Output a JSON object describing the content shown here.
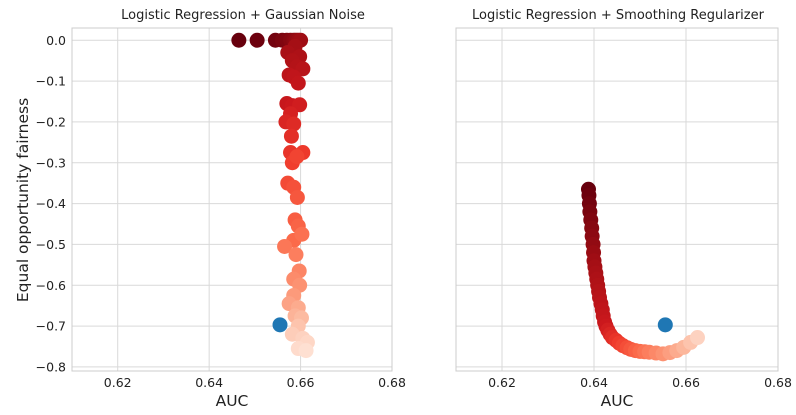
{
  "chart_data": [
    {
      "type": "scatter",
      "title": "Logistic Regression + Gaussian Noise",
      "xlabel": "AUC",
      "ylabel": "Equal opportunity fairness",
      "xlim": [
        0.61,
        0.68
      ],
      "ylim": [
        -0.81,
        0.03
      ],
      "xticks": [
        "0.62",
        "0.64",
        "0.66",
        "0.68"
      ],
      "yticks": [
        "0.0",
        "-0.1",
        "-0.2",
        "-0.3",
        "-0.4",
        "-0.5",
        "-0.6",
        "-0.7",
        "-0.8"
      ],
      "grid": true,
      "colormap": "Reds (dark = low noise, light = high noise)",
      "series": [
        {
          "color": "#a50f15",
          "points": [
            [
              0.6465,
              0.0,
              0.0
            ],
            [
              0.6505,
              0.0,
              0.02
            ],
            [
              0.6545,
              0.0,
              0.04
            ],
            [
              0.656,
              0.0,
              0.06
            ],
            [
              0.657,
              0.0,
              0.08
            ],
            [
              0.6578,
              0.0,
              0.1
            ],
            [
              0.6585,
              0.0,
              0.12
            ],
            [
              0.659,
              0.0,
              0.14
            ],
            [
              0.6595,
              0.0,
              0.16
            ],
            [
              0.66,
              0.0,
              0.18
            ],
            [
              0.6588,
              -0.015,
              0.2
            ],
            [
              0.6572,
              -0.03,
              0.22
            ],
            [
              0.6598,
              -0.04,
              0.24
            ],
            [
              0.6582,
              -0.05,
              0.26
            ],
            [
              0.6592,
              -0.065,
              0.28
            ],
            [
              0.6605,
              -0.07,
              0.3
            ],
            [
              0.6575,
              -0.085,
              0.32
            ],
            [
              0.6585,
              -0.09,
              0.34
            ],
            [
              0.6595,
              -0.105,
              0.36
            ],
            [
              0.657,
              -0.155,
              0.38
            ],
            [
              0.6582,
              -0.16,
              0.4
            ],
            [
              0.6598,
              -0.158,
              0.42
            ],
            [
              0.6578,
              -0.18,
              0.44
            ],
            [
              0.6568,
              -0.2,
              0.46
            ],
            [
              0.6585,
              -0.205,
              0.48
            ],
            [
              0.658,
              -0.235,
              0.5
            ],
            [
              0.6578,
              -0.275,
              0.52
            ],
            [
              0.6605,
              -0.275,
              0.54
            ],
            [
              0.6582,
              -0.3,
              0.56
            ],
            [
              0.6592,
              -0.285,
              0.58
            ],
            [
              0.6572,
              -0.35,
              0.6
            ],
            [
              0.6585,
              -0.36,
              0.62
            ],
            [
              0.6593,
              -0.385,
              0.64
            ],
            [
              0.6588,
              -0.44,
              0.66
            ],
            [
              0.6595,
              -0.455,
              0.68
            ],
            [
              0.6585,
              -0.49,
              0.7
            ],
            [
              0.6603,
              -0.475,
              0.72
            ],
            [
              0.6565,
              -0.505,
              0.74
            ],
            [
              0.659,
              -0.525,
              0.76
            ],
            [
              0.6597,
              -0.565,
              0.78
            ],
            [
              0.6585,
              -0.585,
              0.8
            ],
            [
              0.6598,
              -0.6,
              0.82
            ],
            [
              0.6585,
              -0.625,
              0.84
            ],
            [
              0.6575,
              -0.645,
              0.86
            ],
            [
              0.6595,
              -0.655,
              0.88
            ],
            [
              0.6588,
              -0.675,
              0.9
            ],
            [
              0.6602,
              -0.68,
              0.92
            ],
            [
              0.6595,
              -0.7,
              0.94
            ],
            [
              0.6582,
              -0.72,
              0.96
            ],
            [
              0.6605,
              -0.73,
              0.97
            ],
            [
              0.6615,
              -0.74,
              0.98
            ],
            [
              0.6595,
              -0.755,
              0.99
            ],
            [
              0.6612,
              -0.76,
              1.0
            ]
          ]
        },
        {
          "color": "#1f77b4",
          "points": [
            [
              0.6555,
              -0.697
            ]
          ]
        }
      ]
    },
    {
      "type": "scatter",
      "title": "Logistic Regression + Smoothing Regularizer",
      "xlabel": "AUC",
      "ylabel": "",
      "xlim": [
        0.61,
        0.68
      ],
      "ylim": [
        -0.81,
        0.03
      ],
      "xticks": [
        "0.62",
        "0.64",
        "0.66",
        "0.68"
      ],
      "yticks": [],
      "grid": true,
      "colormap": "Reds (dark = weak regularizer, light = strong regularizer)",
      "series": [
        {
          "color": "#a50f15",
          "points": [
            [
              0.6388,
              -0.365,
              0.0
            ],
            [
              0.6389,
              -0.38,
              0.02
            ],
            [
              0.639,
              -0.4,
              0.04
            ],
            [
              0.6391,
              -0.42,
              0.06
            ],
            [
              0.6393,
              -0.44,
              0.08
            ],
            [
              0.6395,
              -0.46,
              0.1
            ],
            [
              0.6396,
              -0.48,
              0.12
            ],
            [
              0.6398,
              -0.5,
              0.14
            ],
            [
              0.6399,
              -0.52,
              0.16
            ],
            [
              0.64,
              -0.54,
              0.18
            ],
            [
              0.6402,
              -0.555,
              0.2
            ],
            [
              0.6404,
              -0.57,
              0.22
            ],
            [
              0.6406,
              -0.585,
              0.24
            ],
            [
              0.6408,
              -0.6,
              0.26
            ],
            [
              0.641,
              -0.615,
              0.28
            ],
            [
              0.6412,
              -0.63,
              0.3
            ],
            [
              0.6415,
              -0.645,
              0.32
            ],
            [
              0.6418,
              -0.66,
              0.34
            ],
            [
              0.642,
              -0.675,
              0.36
            ],
            [
              0.6423,
              -0.69,
              0.38
            ],
            [
              0.6426,
              -0.7,
              0.4
            ],
            [
              0.643,
              -0.71,
              0.43
            ],
            [
              0.6435,
              -0.72,
              0.46
            ],
            [
              0.644,
              -0.728,
              0.49
            ],
            [
              0.6448,
              -0.735,
              0.52
            ],
            [
              0.6455,
              -0.742,
              0.55
            ],
            [
              0.6463,
              -0.748,
              0.58
            ],
            [
              0.6472,
              -0.753,
              0.61
            ],
            [
              0.648,
              -0.757,
              0.64
            ],
            [
              0.649,
              -0.76,
              0.67
            ],
            [
              0.65,
              -0.762,
              0.7
            ],
            [
              0.651,
              -0.763,
              0.73
            ],
            [
              0.652,
              -0.764,
              0.76
            ],
            [
              0.6535,
              -0.766,
              0.79
            ],
            [
              0.655,
              -0.768,
              0.82
            ],
            [
              0.6565,
              -0.765,
              0.85
            ],
            [
              0.658,
              -0.76,
              0.88
            ],
            [
              0.6595,
              -0.752,
              0.91
            ],
            [
              0.661,
              -0.74,
              0.94
            ],
            [
              0.6625,
              -0.728,
              0.97
            ]
          ]
        },
        {
          "color": "#1f77b4",
          "points": [
            [
              0.6555,
              -0.697
            ]
          ]
        }
      ]
    }
  ]
}
